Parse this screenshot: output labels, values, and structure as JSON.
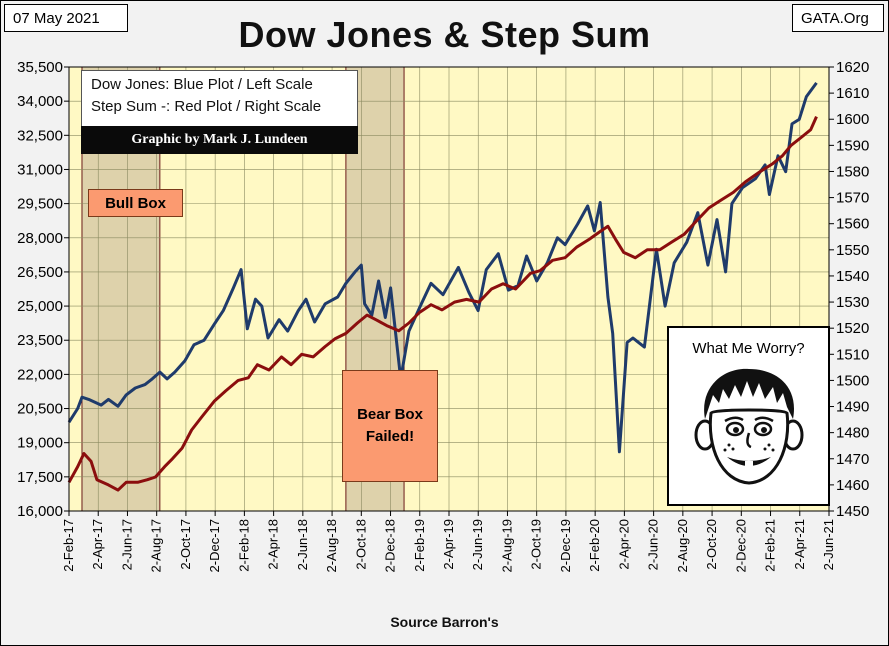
{
  "header": {
    "date": "07 May 2021",
    "site": "GATA.Org",
    "title": "Dow Jones & Step Sum",
    "source": "Source Barron's"
  },
  "legend": {
    "line1": "Dow Jones: Blue Plot / Left Scale",
    "line2": "Step Sum -: Red Plot / Right Scale",
    "credit": "Graphic by Mark J. Lundeen"
  },
  "annotations": {
    "bull_box": "Bull Box",
    "bear_box_line1": "Bear Box",
    "bear_box_line2": "Failed!",
    "worry_caption": "What Me Worry?"
  },
  "colors": {
    "plot_background": "#fff9c4",
    "dow_line": "#1f3b6b",
    "step_sum_line": "#8b0e0e",
    "shaded_box": "#ded2ab",
    "box_fill": "#fb9a70"
  },
  "chart_data": {
    "type": "line",
    "title": "Dow Jones & Step Sum",
    "x_ticks": [
      "2-Feb-17",
      "2-Apr-17",
      "2-Jun-17",
      "2-Aug-17",
      "2-Oct-17",
      "2-Dec-17",
      "2-Feb-18",
      "2-Apr-18",
      "2-Jun-18",
      "2-Aug-18",
      "2-Oct-18",
      "2-Dec-18",
      "2-Feb-19",
      "2-Apr-19",
      "2-Jun-19",
      "2-Aug-19",
      "2-Oct-19",
      "2-Dec-19",
      "2-Feb-20",
      "2-Apr-20",
      "2-Jun-20",
      "2-Aug-20",
      "2-Oct-20",
      "2-Dec-20",
      "2-Feb-21",
      "2-Apr-21",
      "2-Jun-21"
    ],
    "y_left": {
      "min": 16000,
      "max": 35500,
      "ticks": [
        "16,000",
        "17,500",
        "19,000",
        "20,500",
        "22,000",
        "23,500",
        "25,000",
        "26,500",
        "28,000",
        "29,500",
        "31,000",
        "32,500",
        "34,000",
        "35,500"
      ]
    },
    "y_right": {
      "min": 1450,
      "max": 1620,
      "ticks": [
        "1450",
        "1460",
        "1470",
        "1480",
        "1490",
        "1500",
        "1510",
        "1520",
        "1530",
        "1540",
        "1550",
        "1560",
        "1570",
        "1580",
        "1590",
        "1600",
        "1610",
        "1620"
      ]
    },
    "grid": true,
    "shaded_regions": [
      {
        "label": "Bull Box",
        "from": "2017-03-01",
        "to": "2017-08-10"
      },
      {
        "label": "Bear Box Failed!",
        "from": "2018-09-01",
        "to": "2018-12-31"
      }
    ],
    "series": [
      {
        "name": "Dow Jones",
        "axis": "left",
        "points": [
          [
            "2017-02-02",
            19900
          ],
          [
            "2017-02-20",
            20500
          ],
          [
            "2017-03-01",
            21000
          ],
          [
            "2017-03-15",
            20900
          ],
          [
            "2017-04-10",
            20650
          ],
          [
            "2017-04-25",
            20900
          ],
          [
            "2017-05-15",
            20600
          ],
          [
            "2017-06-01",
            21100
          ],
          [
            "2017-06-20",
            21400
          ],
          [
            "2017-07-10",
            21550
          ],
          [
            "2017-07-25",
            21800
          ],
          [
            "2017-08-10",
            22100
          ],
          [
            "2017-08-25",
            21800
          ],
          [
            "2017-09-10",
            22100
          ],
          [
            "2017-10-01",
            22600
          ],
          [
            "2017-10-20",
            23300
          ],
          [
            "2017-11-10",
            23500
          ],
          [
            "2017-12-01",
            24200
          ],
          [
            "2017-12-20",
            24800
          ],
          [
            "2018-01-10",
            25800
          ],
          [
            "2018-01-26",
            26600
          ],
          [
            "2018-02-08",
            24000
          ],
          [
            "2018-02-25",
            25300
          ],
          [
            "2018-03-10",
            25000
          ],
          [
            "2018-03-23",
            23600
          ],
          [
            "2018-04-15",
            24400
          ],
          [
            "2018-05-03",
            23900
          ],
          [
            "2018-05-25",
            24800
          ],
          [
            "2018-06-10",
            25300
          ],
          [
            "2018-06-28",
            24300
          ],
          [
            "2018-07-20",
            25100
          ],
          [
            "2018-08-15",
            25400
          ],
          [
            "2018-09-01",
            26000
          ],
          [
            "2018-09-20",
            26500
          ],
          [
            "2018-10-03",
            26800
          ],
          [
            "2018-10-10",
            25100
          ],
          [
            "2018-10-25",
            24600
          ],
          [
            "2018-11-08",
            26100
          ],
          [
            "2018-11-22",
            24500
          ],
          [
            "2018-12-03",
            25800
          ],
          [
            "2018-12-24",
            21800
          ],
          [
            "2019-01-10",
            23900
          ],
          [
            "2019-02-05",
            25100
          ],
          [
            "2019-02-25",
            26000
          ],
          [
            "2019-03-22",
            25500
          ],
          [
            "2019-04-23",
            26700
          ],
          [
            "2019-05-15",
            25600
          ],
          [
            "2019-06-03",
            24800
          ],
          [
            "2019-06-20",
            26600
          ],
          [
            "2019-07-15",
            27300
          ],
          [
            "2019-08-05",
            25700
          ],
          [
            "2019-08-25",
            25900
          ],
          [
            "2019-09-12",
            27200
          ],
          [
            "2019-10-03",
            26100
          ],
          [
            "2019-10-25",
            26900
          ],
          [
            "2019-11-15",
            28000
          ],
          [
            "2019-12-01",
            27700
          ],
          [
            "2019-12-27",
            28600
          ],
          [
            "2020-01-17",
            29400
          ],
          [
            "2020-01-31",
            28300
          ],
          [
            "2020-02-12",
            29550
          ],
          [
            "2020-02-28",
            25400
          ],
          [
            "2020-03-09",
            23800
          ],
          [
            "2020-03-23",
            18600
          ],
          [
            "2020-04-08",
            23400
          ],
          [
            "2020-04-20",
            23600
          ],
          [
            "2020-05-14",
            23200
          ],
          [
            "2020-06-08",
            27500
          ],
          [
            "2020-06-26",
            25000
          ],
          [
            "2020-07-15",
            26900
          ],
          [
            "2020-08-10",
            27800
          ],
          [
            "2020-09-02",
            29100
          ],
          [
            "2020-09-23",
            26800
          ],
          [
            "2020-10-12",
            28800
          ],
          [
            "2020-10-30",
            26500
          ],
          [
            "2020-11-12",
            29500
          ],
          [
            "2020-12-04",
            30200
          ],
          [
            "2020-12-31",
            30600
          ],
          [
            "2021-01-20",
            31200
          ],
          [
            "2021-01-29",
            29900
          ],
          [
            "2021-02-16",
            31600
          ],
          [
            "2021-03-04",
            30900
          ],
          [
            "2021-03-17",
            33000
          ],
          [
            "2021-04-01",
            33200
          ],
          [
            "2021-04-16",
            34200
          ],
          [
            "2021-05-07",
            34800
          ]
        ]
      },
      {
        "name": "Step Sum",
        "axis": "right",
        "points": [
          [
            "2017-02-02",
            1461
          ],
          [
            "2017-02-20",
            1467
          ],
          [
            "2017-03-05",
            1472
          ],
          [
            "2017-03-20",
            1469
          ],
          [
            "2017-04-01",
            1462
          ],
          [
            "2017-04-25",
            1460
          ],
          [
            "2017-05-15",
            1458
          ],
          [
            "2017-06-01",
            1461
          ],
          [
            "2017-06-25",
            1461
          ],
          [
            "2017-07-15",
            1462
          ],
          [
            "2017-08-01",
            1463
          ],
          [
            "2017-08-20",
            1467
          ],
          [
            "2017-09-05",
            1470
          ],
          [
            "2017-09-25",
            1474
          ],
          [
            "2017-10-15",
            1481
          ],
          [
            "2017-11-05",
            1486
          ],
          [
            "2017-12-01",
            1492
          ],
          [
            "2017-12-25",
            1496
          ],
          [
            "2018-01-20",
            1500
          ],
          [
            "2018-02-10",
            1501
          ],
          [
            "2018-03-01",
            1506
          ],
          [
            "2018-03-25",
            1504
          ],
          [
            "2018-04-20",
            1509
          ],
          [
            "2018-05-10",
            1506
          ],
          [
            "2018-06-01",
            1510
          ],
          [
            "2018-06-25",
            1509
          ],
          [
            "2018-07-20",
            1513
          ],
          [
            "2018-08-10",
            1516
          ],
          [
            "2018-09-01",
            1518
          ],
          [
            "2018-09-25",
            1522
          ],
          [
            "2018-10-15",
            1525
          ],
          [
            "2018-11-05",
            1523
          ],
          [
            "2018-11-25",
            1521
          ],
          [
            "2018-12-20",
            1519
          ],
          [
            "2019-01-10",
            1522
          ],
          [
            "2019-02-01",
            1526
          ],
          [
            "2019-02-25",
            1529
          ],
          [
            "2019-03-20",
            1527
          ],
          [
            "2019-04-15",
            1530
          ],
          [
            "2019-05-10",
            1531
          ],
          [
            "2019-06-05",
            1530
          ],
          [
            "2019-07-01",
            1535
          ],
          [
            "2019-07-25",
            1537
          ],
          [
            "2019-08-20",
            1535
          ],
          [
            "2019-09-20",
            1541
          ],
          [
            "2019-10-10",
            1542
          ],
          [
            "2019-11-05",
            1546
          ],
          [
            "2019-12-01",
            1547
          ],
          [
            "2019-12-25",
            1551
          ],
          [
            "2020-01-20",
            1554
          ],
          [
            "2020-02-12",
            1557
          ],
          [
            "2020-02-28",
            1559
          ],
          [
            "2020-03-15",
            1554
          ],
          [
            "2020-04-01",
            1549
          ],
          [
            "2020-04-25",
            1547
          ],
          [
            "2020-05-20",
            1550
          ],
          [
            "2020-06-15",
            1550
          ],
          [
            "2020-07-10",
            1553
          ],
          [
            "2020-08-05",
            1556
          ],
          [
            "2020-08-30",
            1561
          ],
          [
            "2020-09-25",
            1566
          ],
          [
            "2020-10-20",
            1569
          ],
          [
            "2020-11-15",
            1572
          ],
          [
            "2020-12-10",
            1576
          ],
          [
            "2021-01-10",
            1580
          ],
          [
            "2021-02-05",
            1583
          ],
          [
            "2021-02-25",
            1586
          ],
          [
            "2021-03-15",
            1590
          ],
          [
            "2021-04-05",
            1593
          ],
          [
            "2021-04-25",
            1596
          ],
          [
            "2021-05-07",
            1601
          ]
        ]
      }
    ]
  }
}
